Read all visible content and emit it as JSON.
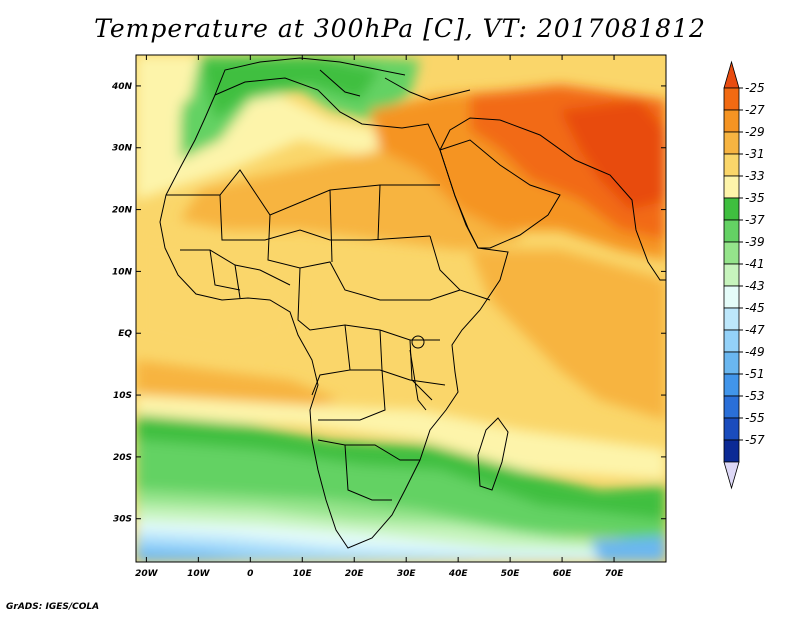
{
  "title": "Temperature at 300hPa [C], VT: 2017081812",
  "footer": "GrADS: IGES/COLA",
  "map": {
    "lon_range": [
      -22,
      80
    ],
    "lat_range": [
      -37,
      45
    ],
    "x_ticks": [
      "20W",
      "10W",
      "0",
      "10E",
      "20E",
      "30E",
      "40E",
      "50E",
      "60E",
      "70E"
    ],
    "y_ticks": [
      "40N",
      "30N",
      "20N",
      "10N",
      "EQ",
      "10S",
      "20S",
      "30S"
    ],
    "field": "air temperature at 300 hPa",
    "units": "C"
  },
  "colorbar": {
    "labels": [
      "-25",
      "-27",
      "-29",
      "-31",
      "-33",
      "-35",
      "-37",
      "-39",
      "-41",
      "-43",
      "-45",
      "-47",
      "-49",
      "-51",
      "-53",
      "-55",
      "-57"
    ],
    "colors": [
      "#e84c10",
      "#f26a12",
      "#f59423",
      "#f7b441",
      "#fad66a",
      "#fdf4aa",
      "#3fbf3f",
      "#64d264",
      "#95e48b",
      "#c7f4bd",
      "#e5fcf9",
      "#bde7fb",
      "#94d2f9",
      "#6ab7f0",
      "#4195ea",
      "#2a6fd8",
      "#1a4cbd",
      "#0c2a95",
      "#ddd8f6"
    ]
  }
}
